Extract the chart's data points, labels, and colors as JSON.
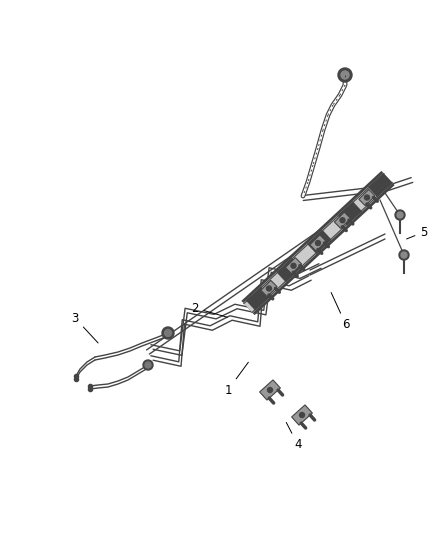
{
  "background_color": "#ffffff",
  "line_color": "#444444",
  "line_width": 1.1,
  "figsize": [
    4.38,
    5.33
  ],
  "dpi": 100,
  "label_fontsize": 8.5
}
